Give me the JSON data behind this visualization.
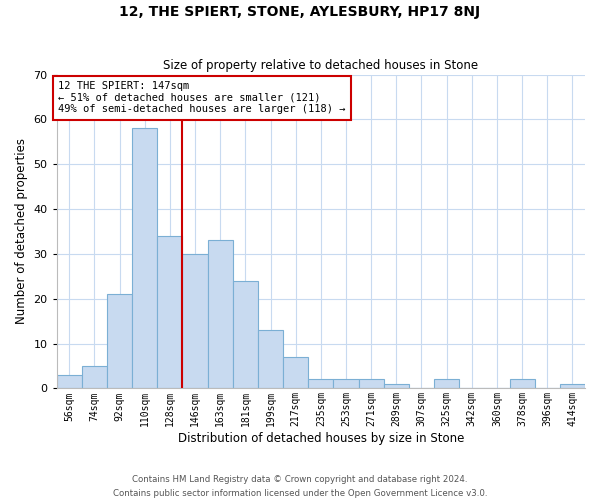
{
  "title": "12, THE SPIERT, STONE, AYLESBURY, HP17 8NJ",
  "subtitle": "Size of property relative to detached houses in Stone",
  "xlabel": "Distribution of detached houses by size in Stone",
  "ylabel": "Number of detached properties",
  "bin_labels": [
    "56sqm",
    "74sqm",
    "92sqm",
    "110sqm",
    "128sqm",
    "146sqm",
    "163sqm",
    "181sqm",
    "199sqm",
    "217sqm",
    "235sqm",
    "253sqm",
    "271sqm",
    "289sqm",
    "307sqm",
    "325sqm",
    "342sqm",
    "360sqm",
    "378sqm",
    "396sqm",
    "414sqm"
  ],
  "bar_heights": [
    3,
    5,
    21,
    58,
    34,
    30,
    33,
    24,
    13,
    7,
    2,
    2,
    2,
    1,
    0,
    2,
    0,
    0,
    2,
    0,
    1
  ],
  "bar_color": "#c8daf0",
  "bar_edge_color": "#7bafd4",
  "vline_x_index": 5,
  "vline_color": "#cc0000",
  "annotation_line1": "12 THE SPIERT: 147sqm",
  "annotation_line2": "← 51% of detached houses are smaller (121)",
  "annotation_line3": "49% of semi-detached houses are larger (118) →",
  "annotation_box_color": "#ffffff",
  "annotation_box_edge_color": "#cc0000",
  "ylim": [
    0,
    70
  ],
  "yticks": [
    0,
    10,
    20,
    30,
    40,
    50,
    60,
    70
  ],
  "footer_line1": "Contains HM Land Registry data © Crown copyright and database right 2024.",
  "footer_line2": "Contains public sector information licensed under the Open Government Licence v3.0.",
  "background_color": "#ffffff",
  "grid_color": "#c8daf0"
}
